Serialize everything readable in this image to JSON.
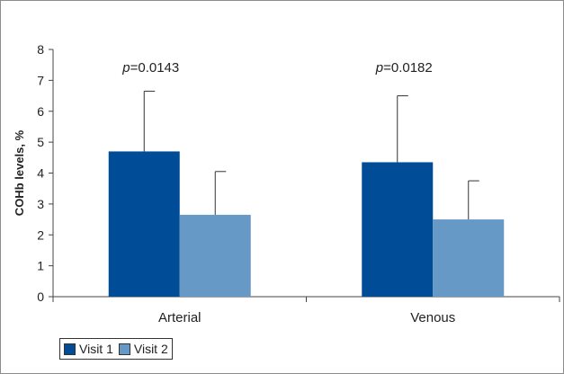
{
  "chart_data": {
    "type": "bar",
    "title": "",
    "xlabel": "",
    "ylabel": "COHb levels, %",
    "ylim": [
      0,
      8
    ],
    "yticks": [
      0,
      1,
      2,
      3,
      4,
      5,
      6,
      7,
      8
    ],
    "categories": [
      "Arterial",
      "Venous"
    ],
    "series": [
      {
        "name": "Visit 1",
        "color": "#004c97",
        "values": [
          4.7,
          4.35
        ],
        "errors": [
          1.95,
          2.15
        ]
      },
      {
        "name": "Visit 2",
        "color": "#6699c6",
        "values": [
          2.65,
          2.5
        ],
        "errors": [
          1.4,
          1.25
        ]
      }
    ],
    "annotations": [
      {
        "category": "Arterial",
        "italic": "p",
        "rest": "=0.0143"
      },
      {
        "category": "Venous",
        "italic": "p",
        "rest": "=0.0182"
      }
    ],
    "legend": "bottom-left",
    "grid": false
  }
}
